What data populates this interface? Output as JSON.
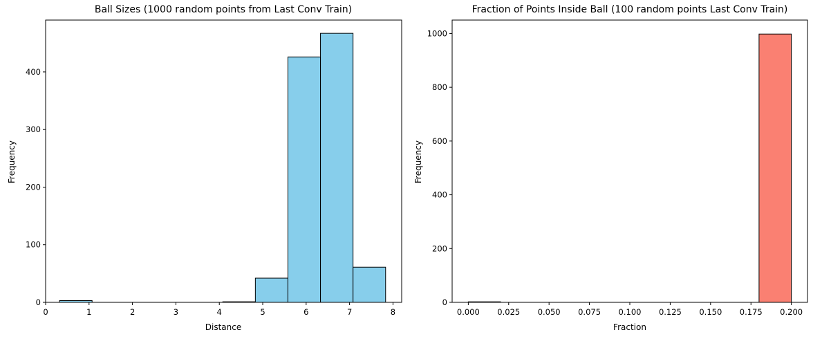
{
  "chart_data": [
    {
      "type": "bar",
      "title": "Ball Sizes (1000 random points from Last Conv Train)",
      "xlabel": "Distance",
      "ylabel": "Frequency",
      "xlim": [
        0.0,
        8.2
      ],
      "ylim": [
        0,
        490
      ],
      "xticks": [
        0,
        1,
        2,
        3,
        4,
        5,
        6,
        7,
        8
      ],
      "xtick_labels": [
        "0",
        "1",
        "2",
        "3",
        "4",
        "5",
        "6",
        "7",
        "8"
      ],
      "yticks": [
        0,
        100,
        200,
        300,
        400
      ],
      "ytick_labels": [
        "0",
        "100",
        "200",
        "300",
        "400"
      ],
      "bar_color": "#87CEEB",
      "edge_color": "#000000",
      "bins": [
        {
          "x0": 0.32,
          "x1": 1.07,
          "count": 3
        },
        {
          "x0": 1.07,
          "x1": 1.82,
          "count": 0
        },
        {
          "x0": 1.82,
          "x1": 2.57,
          "count": 0
        },
        {
          "x0": 2.57,
          "x1": 3.32,
          "count": 0
        },
        {
          "x0": 3.32,
          "x1": 4.08,
          "count": 0
        },
        {
          "x0": 4.08,
          "x1": 4.83,
          "count": 1
        },
        {
          "x0": 4.83,
          "x1": 5.58,
          "count": 42
        },
        {
          "x0": 5.58,
          "x1": 6.33,
          "count": 426
        },
        {
          "x0": 6.33,
          "x1": 7.08,
          "count": 467
        },
        {
          "x0": 7.08,
          "x1": 7.83,
          "count": 61
        }
      ]
    },
    {
      "type": "bar",
      "title": "Fraction of Points Inside Ball (100 random points Last Conv Train)",
      "xlabel": "Fraction",
      "ylabel": "Frequency",
      "xlim": [
        -0.01,
        0.21
      ],
      "ylim": [
        0,
        1050
      ],
      "xticks": [
        0.0,
        0.025,
        0.05,
        0.075,
        0.1,
        0.125,
        0.15,
        0.175,
        0.2
      ],
      "xtick_labels": [
        "0.000",
        "0.025",
        "0.050",
        "0.075",
        "0.100",
        "0.125",
        "0.150",
        "0.175",
        "0.200"
      ],
      "yticks": [
        0,
        200,
        400,
        600,
        800,
        1000
      ],
      "ytick_labels": [
        "0",
        "200",
        "400",
        "600",
        "800",
        "1000"
      ],
      "bar_color": "#FA8072",
      "edge_color": "#000000",
      "bins": [
        {
          "x0": 0.0,
          "x1": 0.02,
          "count": 2
        },
        {
          "x0": 0.02,
          "x1": 0.04,
          "count": 0
        },
        {
          "x0": 0.04,
          "x1": 0.06,
          "count": 0
        },
        {
          "x0": 0.06,
          "x1": 0.08,
          "count": 0
        },
        {
          "x0": 0.08,
          "x1": 0.1,
          "count": 0
        },
        {
          "x0": 0.1,
          "x1": 0.12,
          "count": 0
        },
        {
          "x0": 0.12,
          "x1": 0.14,
          "count": 0
        },
        {
          "x0": 0.14,
          "x1": 0.16,
          "count": 0
        },
        {
          "x0": 0.16,
          "x1": 0.18,
          "count": 0
        },
        {
          "x0": 0.18,
          "x1": 0.2,
          "count": 998
        }
      ]
    }
  ]
}
